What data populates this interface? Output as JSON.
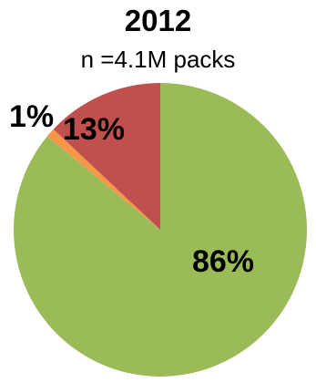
{
  "chart_data": {
    "type": "pie",
    "title": "2012",
    "subtitle": "n =4.1M packs",
    "slices": [
      {
        "label": "86%",
        "value": 86,
        "color": "#9bbb59"
      },
      {
        "label": "1%",
        "value": 1,
        "color": "#f79646"
      },
      {
        "label": "13%",
        "value": 13,
        "color": "#c0504d"
      }
    ],
    "start_angle_deg": 0,
    "direction": "counterclockwise_from_top",
    "legend": "none"
  }
}
